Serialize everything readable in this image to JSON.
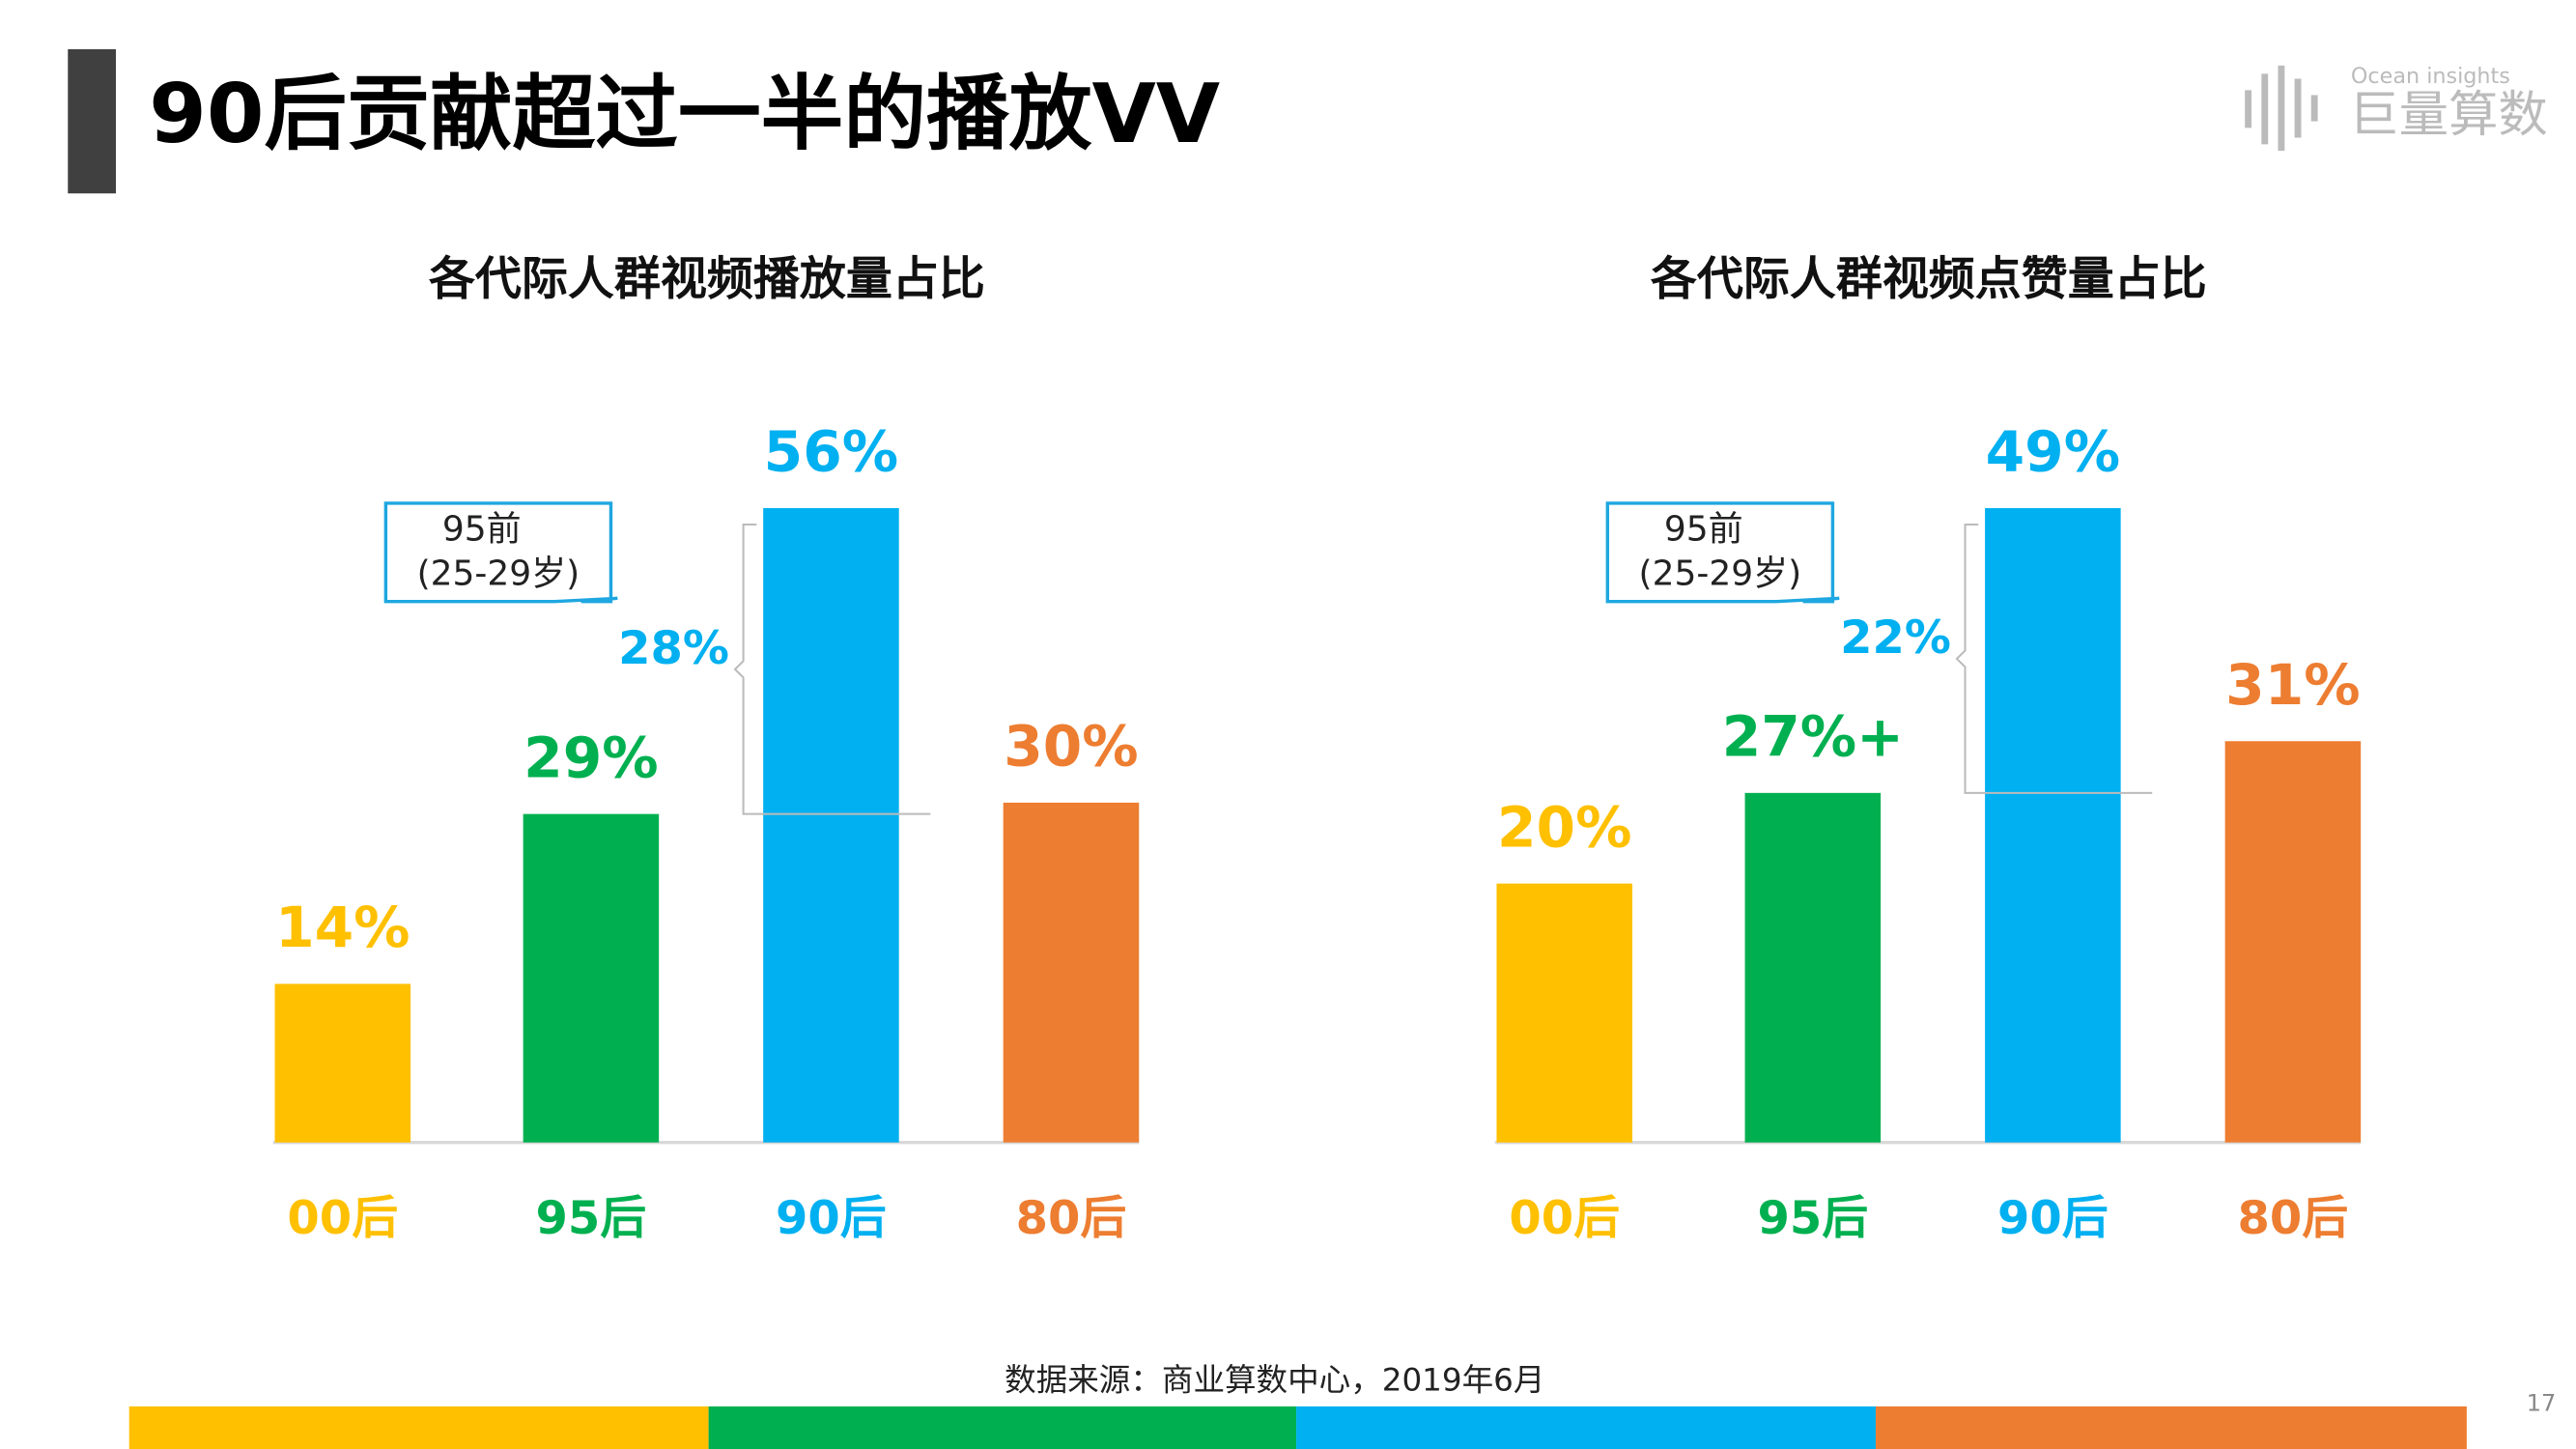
{
  "header": {
    "title": "90后贡献超过一半的播放VV",
    "logo_sub": "Ocean insights",
    "logo": "巨量算数"
  },
  "source": "数据来源：商业算数中心，2019年6月",
  "page_number": "17",
  "chart_data": [
    {
      "type": "bar",
      "title": "各代际人群视频播放量占比",
      "categories": [
        "00后",
        "95后",
        "90后",
        "80后"
      ],
      "values": [
        14,
        29,
        56,
        30
      ],
      "value_labels": [
        "14%",
        "29%",
        "56%",
        "30%"
      ],
      "colors": [
        "#ffc000",
        "#00b050",
        "#00b0f0",
        "#ed7d31"
      ],
      "ylim": [
        0,
        56
      ],
      "callout": [
        "95前",
        "(25-29岁)"
      ],
      "bracket_label": "28%"
    },
    {
      "type": "bar",
      "title": "各代际人群视频点赞量占比",
      "categories": [
        "00后",
        "95后",
        "90后",
        "80后"
      ],
      "values": [
        20,
        27,
        49,
        31
      ],
      "value_labels": [
        "20%",
        "27%+",
        "49%",
        "31%"
      ],
      "colors": [
        "#ffc000",
        "#00b050",
        "#00b0f0",
        "#ed7d31"
      ],
      "ylim": [
        0,
        49
      ],
      "callout": [
        "95前",
        "(25-29岁)"
      ],
      "bracket_label": "22%"
    }
  ]
}
